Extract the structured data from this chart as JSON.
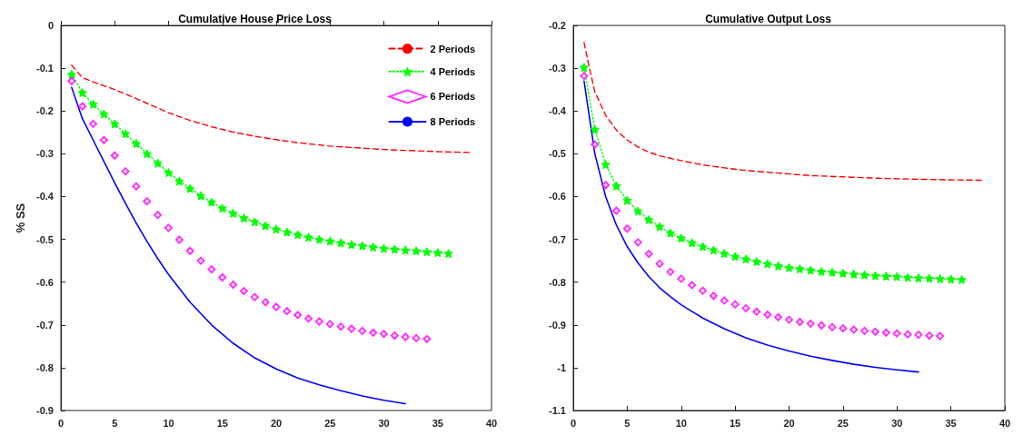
{
  "chart_data": [
    {
      "type": "line",
      "title": "Cumulative House Price Loss",
      "ylabel": "% SS",
      "xlim": [
        0,
        40
      ],
      "xticks": [
        0,
        5,
        10,
        15,
        20,
        25,
        30,
        35,
        40
      ],
      "ylim": [
        -0.9,
        0
      ],
      "yticks": [
        -0.9,
        -0.8,
        -0.7,
        -0.6,
        -0.5,
        -0.4,
        -0.3,
        -0.2,
        -0.1,
        0
      ],
      "grid": false,
      "legend": "top right",
      "series": [
        {
          "name": "2 Periods",
          "color": "#ff0000",
          "line_style": "dashed",
          "marker": "none",
          "x": [
            1,
            2,
            3,
            4,
            5,
            6,
            7,
            8,
            9,
            10,
            12,
            14,
            16,
            18,
            20,
            22,
            25,
            28,
            30,
            33,
            35,
            38
          ],
          "values": [
            -0.093,
            -0.122,
            -0.132,
            -0.141,
            -0.15,
            -0.16,
            -0.171,
            -0.182,
            -0.193,
            -0.204,
            -0.222,
            -0.237,
            -0.249,
            -0.259,
            -0.267,
            -0.274,
            -0.282,
            -0.287,
            -0.29,
            -0.293,
            -0.295,
            -0.297
          ]
        },
        {
          "name": "4 Periods",
          "color": "#00ff00",
          "line_style": "dotted",
          "marker": "star",
          "x": [
            1,
            2,
            3,
            4,
            5,
            6,
            7,
            8,
            9,
            10,
            11,
            12,
            13,
            14,
            15,
            16,
            17,
            18,
            19,
            20,
            21,
            22,
            23,
            24,
            25,
            26,
            27,
            28,
            29,
            30,
            31,
            32,
            33,
            34,
            35,
            36
          ],
          "values": [
            -0.114,
            -0.157,
            -0.184,
            -0.207,
            -0.23,
            -0.253,
            -0.276,
            -0.3,
            -0.322,
            -0.344,
            -0.364,
            -0.381,
            -0.398,
            -0.413,
            -0.427,
            -0.439,
            -0.45,
            -0.459,
            -0.468,
            -0.476,
            -0.483,
            -0.489,
            -0.495,
            -0.5,
            -0.504,
            -0.508,
            -0.512,
            -0.515,
            -0.518,
            -0.521,
            -0.523,
            -0.525,
            -0.527,
            -0.529,
            -0.531,
            -0.533
          ]
        },
        {
          "name": "6 Periods",
          "type": "scatter",
          "color": "#ff00ff",
          "marker": "diamond",
          "x": [
            1,
            2,
            3,
            4,
            5,
            6,
            7,
            8,
            9,
            10,
            11,
            12,
            13,
            14,
            15,
            16,
            17,
            18,
            19,
            20,
            21,
            22,
            23,
            24,
            25,
            26,
            27,
            28,
            29,
            30,
            31,
            32,
            33,
            34
          ],
          "values": [
            -0.13,
            -0.189,
            -0.23,
            -0.268,
            -0.304,
            -0.341,
            -0.376,
            -0.411,
            -0.443,
            -0.473,
            -0.501,
            -0.527,
            -0.55,
            -0.57,
            -0.589,
            -0.606,
            -0.621,
            -0.635,
            -0.647,
            -0.658,
            -0.668,
            -0.677,
            -0.685,
            -0.692,
            -0.698,
            -0.704,
            -0.709,
            -0.714,
            -0.718,
            -0.721,
            -0.725,
            -0.728,
            -0.731,
            -0.733
          ]
        },
        {
          "name": "8 Periods",
          "color": "#0000ff",
          "line_style": "solid",
          "marker": "none",
          "x": [
            1,
            2,
            3,
            4,
            5,
            6,
            7,
            8,
            9,
            10,
            12,
            14,
            16,
            18,
            20,
            22,
            24,
            26,
            28,
            30,
            32
          ],
          "values": [
            -0.145,
            -0.218,
            -0.268,
            -0.318,
            -0.368,
            -0.416,
            -0.462,
            -0.505,
            -0.545,
            -0.582,
            -0.647,
            -0.7,
            -0.743,
            -0.777,
            -0.803,
            -0.824,
            -0.84,
            -0.854,
            -0.866,
            -0.876,
            -0.884
          ]
        }
      ]
    },
    {
      "type": "line",
      "title": "Cumulative Output Loss",
      "xlim": [
        0,
        40
      ],
      "xticks": [
        0,
        5,
        10,
        15,
        20,
        25,
        30,
        35,
        40
      ],
      "ylim": [
        -1.1,
        -0.2
      ],
      "yticks": [
        -1.1,
        -1,
        -0.9,
        -0.8,
        -0.7,
        -0.6,
        -0.5,
        -0.4,
        -0.3,
        -0.2
      ],
      "grid": false,
      "series": [
        {
          "color": "#ff0000",
          "line_style": "dashed",
          "marker": "none",
          "x": [
            1,
            1.5,
            2,
            3,
            4,
            5,
            6,
            7,
            8,
            10,
            12,
            14,
            16,
            18,
            20,
            22,
            25,
            28,
            31,
            35,
            38
          ],
          "values": [
            -0.24,
            -0.3,
            -0.355,
            -0.41,
            -0.445,
            -0.468,
            -0.484,
            -0.496,
            -0.505,
            -0.516,
            -0.526,
            -0.533,
            -0.539,
            -0.543,
            -0.547,
            -0.551,
            -0.554,
            -0.557,
            -0.559,
            -0.561,
            -0.562
          ]
        },
        {
          "color": "#00ff00",
          "line_style": "dotted",
          "marker": "star",
          "x": [
            1,
            2,
            3,
            4,
            5,
            6,
            7,
            8,
            9,
            10,
            11,
            12,
            13,
            14,
            15,
            16,
            17,
            18,
            19,
            20,
            21,
            22,
            23,
            24,
            25,
            26,
            27,
            28,
            29,
            30,
            31,
            32,
            33,
            34,
            35,
            36
          ],
          "values": [
            -0.298,
            -0.443,
            -0.525,
            -0.575,
            -0.609,
            -0.634,
            -0.654,
            -0.67,
            -0.685,
            -0.697,
            -0.708,
            -0.717,
            -0.725,
            -0.733,
            -0.74,
            -0.746,
            -0.752,
            -0.757,
            -0.762,
            -0.766,
            -0.769,
            -0.772,
            -0.775,
            -0.777,
            -0.779,
            -0.781,
            -0.783,
            -0.785,
            -0.786,
            -0.787,
            -0.789,
            -0.79,
            -0.791,
            -0.792,
            -0.793,
            -0.794
          ]
        },
        {
          "type": "scatter",
          "color": "#ff00ff",
          "marker": "diamond",
          "x": [
            1,
            2,
            3,
            4,
            5,
            6,
            7,
            8,
            9,
            10,
            11,
            12,
            13,
            14,
            15,
            16,
            17,
            18,
            19,
            20,
            21,
            22,
            23,
            24,
            25,
            26,
            27,
            28,
            29,
            30,
            31,
            32,
            33,
            34
          ],
          "values": [
            -0.318,
            -0.478,
            -0.573,
            -0.633,
            -0.675,
            -0.707,
            -0.734,
            -0.757,
            -0.776,
            -0.792,
            -0.807,
            -0.82,
            -0.832,
            -0.843,
            -0.852,
            -0.861,
            -0.869,
            -0.876,
            -0.882,
            -0.888,
            -0.893,
            -0.897,
            -0.901,
            -0.905,
            -0.908,
            -0.911,
            -0.914,
            -0.916,
            -0.918,
            -0.92,
            -0.922,
            -0.923,
            -0.925,
            -0.926
          ]
        },
        {
          "color": "#0000ff",
          "line_style": "solid",
          "marker": "none",
          "x": [
            1,
            2,
            3,
            4,
            5,
            6,
            7,
            8,
            9,
            10,
            12,
            14,
            16,
            18,
            20,
            22,
            24,
            26,
            28,
            30,
            32
          ],
          "values": [
            -0.33,
            -0.5,
            -0.6,
            -0.667,
            -0.717,
            -0.755,
            -0.787,
            -0.813,
            -0.834,
            -0.853,
            -0.884,
            -0.909,
            -0.93,
            -0.947,
            -0.961,
            -0.973,
            -0.983,
            -0.992,
            -0.999,
            -1.005,
            -1.01
          ]
        }
      ]
    }
  ]
}
